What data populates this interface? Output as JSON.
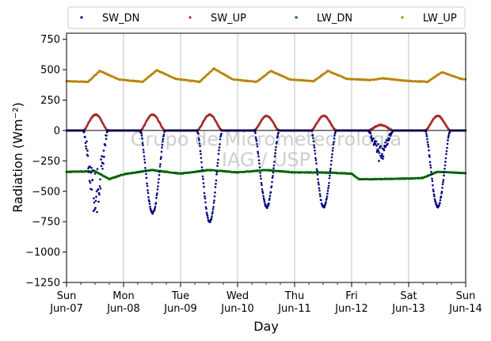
{
  "chart_data": {
    "type": "scatter",
    "title": "",
    "xlabel": "Day",
    "ylabel": "Radiation (Wm⁻²)",
    "ylim": [
      -1250,
      800
    ],
    "yticks": [
      -1250,
      -1000,
      -750,
      -500,
      -250,
      0,
      250,
      500,
      750
    ],
    "ytick_labels": [
      "−1250",
      "−1000",
      "−750",
      "−500",
      "−250",
      "0",
      "250",
      "500",
      "750"
    ],
    "xlim": [
      "2015-06-07",
      "2015-06-14"
    ],
    "xticks": [
      {
        "date": "2015-06-07",
        "weekday": "Sun",
        "label": "Jun-07"
      },
      {
        "date": "2015-06-08",
        "weekday": "Mon",
        "label": "Jun-08"
      },
      {
        "date": "2015-06-09",
        "weekday": "Tue",
        "label": "Jun-09"
      },
      {
        "date": "2015-06-10",
        "weekday": "Wed",
        "label": "Jun-10"
      },
      {
        "date": "2015-06-11",
        "weekday": "Thu",
        "label": "Jun-11"
      },
      {
        "date": "2015-06-12",
        "weekday": "Fri",
        "label": "Jun-12"
      },
      {
        "date": "2015-06-13",
        "weekday": "Sat",
        "label": "Jun-13"
      },
      {
        "date": "2015-06-14",
        "weekday": "Sun",
        "label": "Jun-14"
      }
    ],
    "grid": "vertical",
    "zero_line": true,
    "legend_position": "top",
    "watermark_lines": [
      "Grupo de Micrometeorologia",
      "IAG / USP"
    ],
    "series": [
      {
        "name": "SW_DN",
        "color": "#00007f",
        "sign": -1,
        "daily_peak": [
          -720,
          -680,
          -750,
          -630,
          -630,
          -260,
          -630
        ],
        "cloudy": [
          true,
          false,
          false,
          false,
          false,
          true,
          false
        ]
      },
      {
        "name": "SW_UP",
        "color": "#a52a2a",
        "sign": 1,
        "daily_peak": [
          130,
          130,
          130,
          120,
          120,
          45,
          120
        ]
      },
      {
        "name": "LW_DN",
        "color": "#006400",
        "sign": -1,
        "keypoints": [
          [
            "2015-06-07T00:00",
            -340
          ],
          [
            "2015-06-07T12:00",
            -335
          ],
          [
            "2015-06-07T18:00",
            -400
          ],
          [
            "2015-06-08T00:00",
            -360
          ],
          [
            "2015-06-08T12:00",
            -325
          ],
          [
            "2015-06-09T00:00",
            -355
          ],
          [
            "2015-06-09T12:00",
            -325
          ],
          [
            "2015-06-10T00:00",
            -345
          ],
          [
            "2015-06-10T12:00",
            -325
          ],
          [
            "2015-06-11T00:00",
            -345
          ],
          [
            "2015-06-11T12:00",
            -345
          ],
          [
            "2015-06-12T00:00",
            -355
          ],
          [
            "2015-06-12T03:00",
            -400
          ],
          [
            "2015-06-12T12:00",
            -400
          ],
          [
            "2015-06-13T00:00",
            -395
          ],
          [
            "2015-06-13T06:00",
            -390
          ],
          [
            "2015-06-13T12:00",
            -340
          ],
          [
            "2015-06-14T00:00",
            -350
          ]
        ]
      },
      {
        "name": "LW_UP",
        "color": "#b8860b",
        "sign": 1,
        "keypoints": [
          [
            "2015-06-07T00:00",
            405
          ],
          [
            "2015-06-07T09:00",
            400
          ],
          [
            "2015-06-07T14:00",
            490
          ],
          [
            "2015-06-07T22:00",
            420
          ],
          [
            "2015-06-08T08:00",
            400
          ],
          [
            "2015-06-08T14:00",
            495
          ],
          [
            "2015-06-08T22:00",
            425
          ],
          [
            "2015-06-09T08:00",
            400
          ],
          [
            "2015-06-09T14:00",
            510
          ],
          [
            "2015-06-09T22:00",
            420
          ],
          [
            "2015-06-10T08:00",
            400
          ],
          [
            "2015-06-10T14:00",
            490
          ],
          [
            "2015-06-10T22:00",
            420
          ],
          [
            "2015-06-11T08:00",
            405
          ],
          [
            "2015-06-11T14:00",
            490
          ],
          [
            "2015-06-11T22:00",
            425
          ],
          [
            "2015-06-12T08:00",
            415
          ],
          [
            "2015-06-12T13:00",
            430
          ],
          [
            "2015-06-12T22:00",
            410
          ],
          [
            "2015-06-13T08:00",
            400
          ],
          [
            "2015-06-13T14:00",
            480
          ],
          [
            "2015-06-13T22:00",
            425
          ],
          [
            "2015-06-14T00:00",
            420
          ]
        ]
      }
    ]
  }
}
